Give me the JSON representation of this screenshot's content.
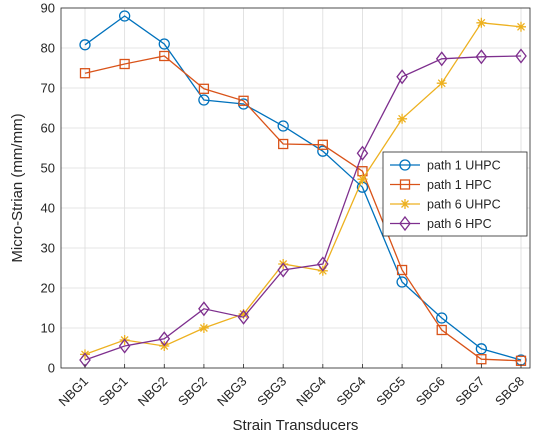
{
  "chart_data": {
    "type": "line",
    "xlabel": "Strain Transducers",
    "ylabel": "Micro-Strian (mm/mm)",
    "categories": [
      "NBG1",
      "SBG1",
      "NBG2",
      "SBG2",
      "NBG3",
      "SBG3",
      "NBG4",
      "SBG4",
      "SBG5",
      "SBG6",
      "SBG7",
      "SBG8"
    ],
    "ylim": [
      0,
      90
    ],
    "yticks": [
      0,
      10,
      20,
      30,
      40,
      50,
      60,
      70,
      80,
      90
    ],
    "grid": true,
    "legend_position": "right",
    "series": [
      {
        "name": "path 1 UHPC",
        "marker": "circle",
        "color": "#0072BD",
        "values": [
          80.8,
          88.0,
          81.0,
          67.0,
          66.0,
          60.5,
          54.2,
          45.2,
          21.5,
          12.5,
          4.8,
          2.0
        ]
      },
      {
        "name": "path 1 HPC",
        "marker": "square",
        "color": "#D95319",
        "values": [
          73.7,
          76.0,
          78.0,
          69.8,
          66.8,
          56.0,
          55.8,
          49.2,
          24.5,
          9.5,
          2.2,
          1.8
        ]
      },
      {
        "name": "path 6 UHPC",
        "marker": "asterisk",
        "color": "#EDB120",
        "values": [
          3.4,
          7.0,
          5.5,
          10.0,
          13.5,
          26.0,
          24.3,
          47.2,
          62.3,
          71.2,
          86.3,
          85.3
        ]
      },
      {
        "name": "path 6 HPC",
        "marker": "diamond",
        "color": "#7E2F8E",
        "values": [
          2.0,
          5.5,
          7.3,
          14.8,
          12.7,
          24.5,
          26.0,
          53.7,
          72.8,
          77.3,
          77.8,
          78.0
        ]
      }
    ]
  }
}
